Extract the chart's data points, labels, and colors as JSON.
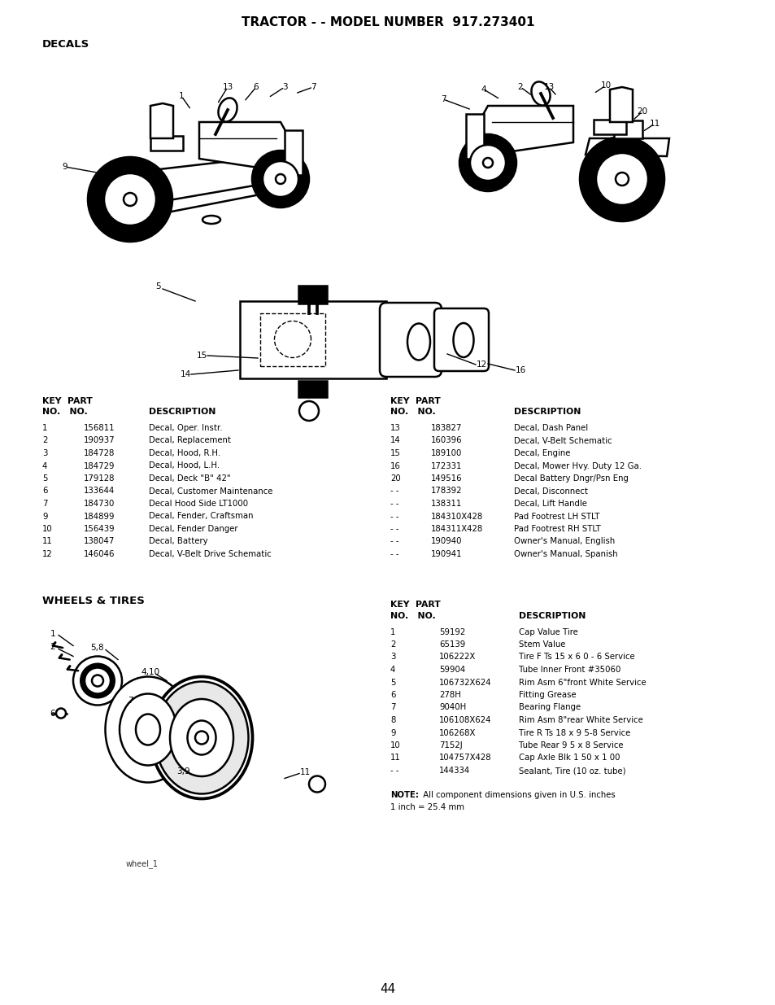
{
  "title": "TRACTOR - - MODEL NUMBER  917.273401",
  "section1": "DECALS",
  "section2": "WHEELS & TIRES",
  "page_number": "44",
  "bg_color": "#ffffff",
  "decals_left_rows": [
    [
      "1",
      "156811",
      "Decal, Oper. Instr."
    ],
    [
      "2",
      "190937",
      "Decal, Replacement"
    ],
    [
      "3",
      "184728",
      "Decal, Hood, R.H."
    ],
    [
      "4",
      "184729",
      "Decal, Hood, L.H."
    ],
    [
      "5",
      "179128",
      "Decal, Deck \"B\" 42\""
    ],
    [
      "6",
      "133644",
      "Decal, Customer Maintenance"
    ],
    [
      "7",
      "184730",
      "Decal Hood Side LT1000"
    ],
    [
      "9",
      "184899",
      "Decal, Fender, Craftsman"
    ],
    [
      "10",
      "156439",
      "Decal, Fender Danger"
    ],
    [
      "11",
      "138047",
      "Decal, Battery"
    ],
    [
      "12",
      "146046",
      "Decal, V-Belt Drive Schematic"
    ]
  ],
  "decals_right_rows": [
    [
      "13",
      "183827",
      "Decal, Dash Panel"
    ],
    [
      "14",
      "160396",
      "Decal, V-Belt Schematic"
    ],
    [
      "15",
      "189100",
      "Decal, Engine"
    ],
    [
      "16",
      "172331",
      "Decal, Mower Hvy. Duty 12 Ga."
    ],
    [
      "20",
      "149516",
      "Decal Battery Dngr/Psn Eng"
    ],
    [
      "- -",
      "178392",
      "Decal, Disconnect"
    ],
    [
      "- -",
      "138311",
      "Decal, Lift Handle"
    ],
    [
      "- -",
      "184310X428",
      "Pad Footrest LH STLT"
    ],
    [
      "- -",
      "184311X428",
      "Pad Footrest RH STLT"
    ],
    [
      "- -",
      "190940",
      "Owner's Manual, English"
    ],
    [
      "- -",
      "190941",
      "Owner's Manual, Spanish"
    ]
  ],
  "wheels_rows": [
    [
      "1",
      "59192",
      "Cap Value Tire"
    ],
    [
      "2",
      "65139",
      "Stem Value"
    ],
    [
      "3",
      "106222X",
      "Tire F Ts 15 x 6 0 - 6 Service"
    ],
    [
      "4",
      "59904",
      "Tube Inner Front #35060"
    ],
    [
      "5",
      "106732X624",
      "Rim Asm 6\"front White Service"
    ],
    [
      "6",
      "278H",
      "Fitting Grease"
    ],
    [
      "7",
      "9040H",
      "Bearing Flange"
    ],
    [
      "8",
      "106108X624",
      "Rim Asm 8\"rear White Service"
    ],
    [
      "9",
      "106268X",
      "Tire R Ts 18 x 9 5-8 Service"
    ],
    [
      "10",
      "7152J",
      "Tube Rear 9 5 x 8 Service"
    ],
    [
      "11",
      "104757X428",
      "Cap Axle Blk 1 50 x 1 00"
    ],
    [
      "- -",
      "144334",
      "Sealant, Tire (10 oz. tube)"
    ]
  ],
  "note_bold": "NOTE:",
  "note_rest": " All component dimensions given in U.S. inches",
  "note_line2": "1 inch = 25.4 mm",
  "lw": 1.8,
  "lw_thin": 1.0,
  "lw_thick": 3.5
}
